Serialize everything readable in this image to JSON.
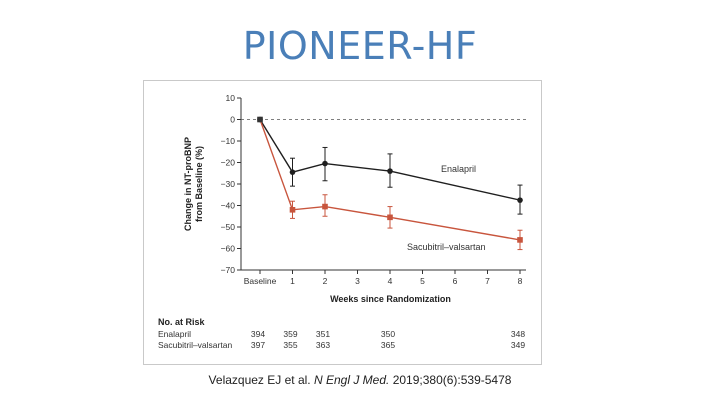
{
  "slide": {
    "title": "PIONEER-HF"
  },
  "citation": {
    "authors": "Velazquez EJ et al.",
    "journal": "N Engl J Med.",
    "details": "2019;380(6):539-5478"
  },
  "colors": {
    "enalapril": "#1f1f1f",
    "sacubitril": "#c8553d",
    "title": "#4a7fb8"
  },
  "chart_data": {
    "type": "line",
    "title": "",
    "xlabel": "Weeks since Randomization",
    "ylabel": "Change in NT-proBNP from Baseline (%)",
    "ylabel_lines": [
      "Change in NT-proBNP",
      "from Baseline (%)"
    ],
    "x_ticks": [
      "Baseline",
      "1",
      "2",
      "3",
      "4",
      "5",
      "6",
      "7",
      "8"
    ],
    "x_tick_values": [
      0,
      1,
      2,
      3,
      4,
      5,
      6,
      7,
      8
    ],
    "xlim": [
      0,
      8
    ],
    "ylim": [
      -70,
      10
    ],
    "y_ticks": [
      10,
      0,
      -10,
      -20,
      -30,
      -40,
      -50,
      -60,
      -70
    ],
    "reference_line": 0,
    "series": [
      {
        "name": "Enalapril",
        "label": "Enalapril",
        "color": "#1f1f1f",
        "marker": "circle",
        "x": [
          0,
          1,
          2,
          4,
          8
        ],
        "y": [
          0,
          -24.5,
          -20.5,
          -24,
          -37.5
        ],
        "err_low": [
          0,
          -31,
          -28.5,
          -31.5,
          -44
        ],
        "err_high": [
          0,
          -18,
          -13,
          -16,
          -30.5
        ]
      },
      {
        "name": "Sacubitril-valsartan",
        "label": "Sacubitril–valsartan",
        "color": "#c8553d",
        "marker": "square",
        "x": [
          0,
          1,
          2,
          4,
          8
        ],
        "y": [
          0,
          -42,
          -40.5,
          -45.5,
          -56
        ],
        "err_low": [
          0,
          -46,
          -45,
          -50.5,
          -60.5
        ],
        "err_high": [
          0,
          -38,
          -35,
          -40.5,
          -51.5
        ]
      }
    ],
    "risk_table": {
      "heading": "No. at Risk",
      "rows": [
        {
          "label": "Enalapril",
          "values": [
            "394",
            "359",
            "351",
            "350",
            "348"
          ]
        },
        {
          "label": "Sacubitril–valsartan",
          "values": [
            "397",
            "355",
            "363",
            "365",
            "349"
          ]
        }
      ],
      "weeks": [
        0,
        1,
        2,
        4,
        8
      ]
    }
  }
}
